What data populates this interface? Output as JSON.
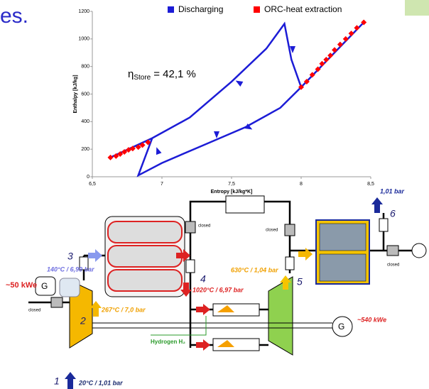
{
  "header": {
    "title_fragment": "es."
  },
  "chart_data": {
    "type": "line",
    "xlabel": "Entropy [kJ/kg*K]",
    "ylabel": "Enthalpy [kJ/kg]",
    "xlim": [
      6.5,
      8.5
    ],
    "ylim": [
      0,
      1200
    ],
    "xticks": [
      {
        "value": 6.5,
        "label": "6,5"
      },
      7,
      {
        "value": 7.5,
        "label": "7,5"
      },
      8,
      {
        "value": 8.5,
        "label": "8,5"
      }
    ],
    "yticks": [
      0,
      200,
      400,
      600,
      800,
      1000,
      1200
    ],
    "annotation": {
      "symbol": "η",
      "subscript": "Store",
      "text": "= 42,1 %"
    },
    "series": [
      {
        "name": "Discharging",
        "color": "#1c1cd6",
        "type": "line",
        "x": [
          6.63,
          6.93,
          7.2,
          7.5,
          7.75,
          7.88,
          7.93,
          8.0,
          8.45,
          null,
          8.0,
          7.85,
          7.6,
          7.3,
          7.0,
          6.83,
          6.93
        ],
        "values": [
          140,
          280,
          430,
          690,
          930,
          1110,
          850,
          650,
          1120,
          null,
          650,
          500,
          360,
          230,
          100,
          10,
          280
        ]
      },
      {
        "name": "ORC-heat extraction",
        "color": "#ff0000",
        "type": "scatter",
        "x": [
          6.63,
          6.67,
          6.7,
          6.73,
          6.76,
          6.79,
          6.83,
          6.86,
          6.9,
          8.0,
          8.04,
          8.08,
          8.12,
          8.15,
          8.18,
          8.21,
          8.24,
          8.28,
          8.32,
          8.36,
          8.4,
          8.45
        ],
        "values": [
          140,
          150,
          165,
          180,
          195,
          205,
          215,
          230,
          250,
          650,
          690,
          740,
          780,
          820,
          850,
          880,
          920,
          960,
          1000,
          1040,
          1080,
          1120
        ]
      }
    ]
  },
  "diagram": {
    "labels": [
      "1,01 bar",
      "6",
      "3",
      "140°C / 6,99 bar",
      "~50 kWe",
      "G",
      "closed",
      "closed",
      "closed",
      "closed",
      "267°C / 7,0 bar",
      "2",
      "4",
      "1020°C / 6,97 bar",
      "630°C / 1,04 bar",
      "5",
      "~540 kWe",
      "G",
      "Hydrogen H₂",
      "1",
      "20°C / 1,01 bar"
    ]
  }
}
